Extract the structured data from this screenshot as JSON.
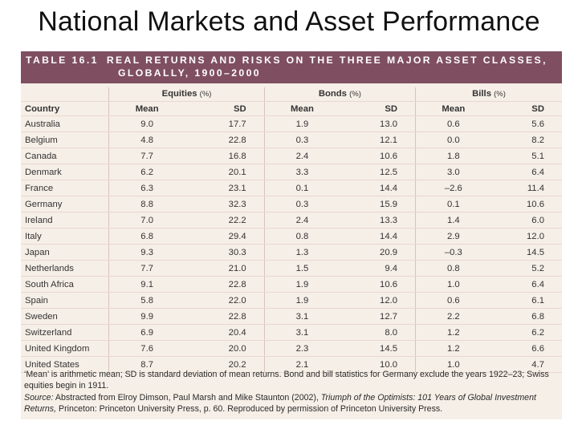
{
  "slide": {
    "title": "National Markets and Asset Performance"
  },
  "table": {
    "label": "TABLE 16.1",
    "caption_line1": "REAL RETURNS AND RISKS ON THE THREE MAJOR ASSET CLASSES,",
    "caption_line2": "GLOBALLY, 1900–2000",
    "col_country": "Country",
    "groups": [
      {
        "name": "Equities",
        "unit": "(%)"
      },
      {
        "name": "Bonds",
        "unit": "(%)"
      },
      {
        "name": "Bills",
        "unit": "(%)"
      }
    ],
    "sub_mean": "Mean",
    "sub_sd": "SD",
    "rows": [
      {
        "country": "Australia",
        "eq_mean": "9.0",
        "eq_sd": "17.7",
        "bo_mean": "1.9",
        "bo_sd": "13.0",
        "bi_mean": "0.6",
        "bi_sd": "5.6"
      },
      {
        "country": "Belgium",
        "eq_mean": "4.8",
        "eq_sd": "22.8",
        "bo_mean": "0.3",
        "bo_sd": "12.1",
        "bi_mean": "0.0",
        "bi_sd": "8.2"
      },
      {
        "country": "Canada",
        "eq_mean": "7.7",
        "eq_sd": "16.8",
        "bo_mean": "2.4",
        "bo_sd": "10.6",
        "bi_mean": "1.8",
        "bi_sd": "5.1"
      },
      {
        "country": "Denmark",
        "eq_mean": "6.2",
        "eq_sd": "20.1",
        "bo_mean": "3.3",
        "bo_sd": "12.5",
        "bi_mean": "3.0",
        "bi_sd": "6.4"
      },
      {
        "country": "France",
        "eq_mean": "6.3",
        "eq_sd": "23.1",
        "bo_mean": "0.1",
        "bo_sd": "14.4",
        "bi_mean": "–2.6",
        "bi_sd": "11.4"
      },
      {
        "country": "Germany",
        "eq_mean": "8.8",
        "eq_sd": "32.3",
        "bo_mean": "0.3",
        "bo_sd": "15.9",
        "bi_mean": "0.1",
        "bi_sd": "10.6"
      },
      {
        "country": "Ireland",
        "eq_mean": "7.0",
        "eq_sd": "22.2",
        "bo_mean": "2.4",
        "bo_sd": "13.3",
        "bi_mean": "1.4",
        "bi_sd": "6.0"
      },
      {
        "country": "Italy",
        "eq_mean": "6.8",
        "eq_sd": "29.4",
        "bo_mean": "0.8",
        "bo_sd": "14.4",
        "bi_mean": "2.9",
        "bi_sd": "12.0"
      },
      {
        "country": "Japan",
        "eq_mean": "9.3",
        "eq_sd": "30.3",
        "bo_mean": "1.3",
        "bo_sd": "20.9",
        "bi_mean": "–0.3",
        "bi_sd": "14.5"
      },
      {
        "country": "Netherlands",
        "eq_mean": "7.7",
        "eq_sd": "21.0",
        "bo_mean": "1.5",
        "bo_sd": "9.4",
        "bi_mean": "0.8",
        "bi_sd": "5.2"
      },
      {
        "country": "South Africa",
        "eq_mean": "9.1",
        "eq_sd": "22.8",
        "bo_mean": "1.9",
        "bo_sd": "10.6",
        "bi_mean": "1.0",
        "bi_sd": "6.4"
      },
      {
        "country": "Spain",
        "eq_mean": "5.8",
        "eq_sd": "22.0",
        "bo_mean": "1.9",
        "bo_sd": "12.0",
        "bi_mean": "0.6",
        "bi_sd": "6.1"
      },
      {
        "country": "Sweden",
        "eq_mean": "9.9",
        "eq_sd": "22.8",
        "bo_mean": "3.1",
        "bo_sd": "12.7",
        "bi_mean": "2.2",
        "bi_sd": "6.8"
      },
      {
        "country": "Switzerland",
        "eq_mean": "6.9",
        "eq_sd": "20.4",
        "bo_mean": "3.1",
        "bo_sd": "8.0",
        "bi_mean": "1.2",
        "bi_sd": "6.2"
      },
      {
        "country": "United Kingdom",
        "eq_mean": "7.6",
        "eq_sd": "20.0",
        "bo_mean": "2.3",
        "bo_sd": "14.5",
        "bi_mean": "1.2",
        "bi_sd": "6.6"
      },
      {
        "country": "United States",
        "eq_mean": "8.7",
        "eq_sd": "20.2",
        "bo_mean": "2.1",
        "bo_sd": "10.0",
        "bi_mean": "1.0",
        "bi_sd": "4.7"
      }
    ],
    "note": "‘Mean’ is arithmetic mean; SD is standard deviation of mean returns. Bond and bill statistics for Germany exclude the years 1922–23; Swiss equities begin in 1911.",
    "source_label": "Source:",
    "source_pre": "Abstracted from Elroy Dimson, Paul Marsh and Mike Staunton (2002),",
    "source_book": "Triumph of the Optimists: 101 Years of Global Investment Returns,",
    "source_post": "Princeton: Princeton University Press, p. 60. Reproduced by permission of Princeton University Press."
  },
  "colors": {
    "banner": "#7f4f61",
    "table_bg": "#f6efe7",
    "rule": "#e8d8cf"
  }
}
